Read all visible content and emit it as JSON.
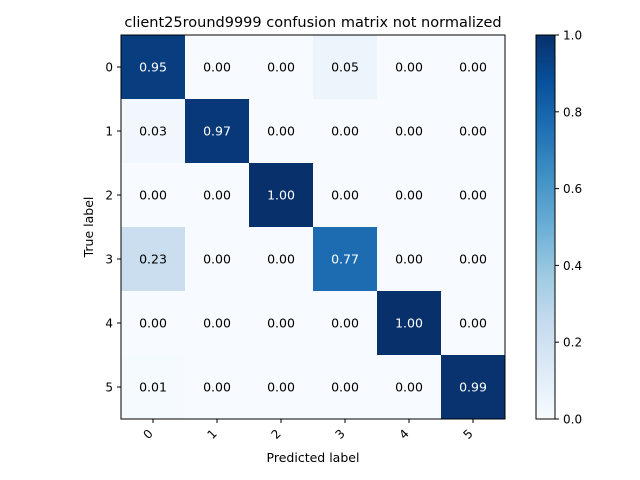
{
  "chart_data": {
    "type": "heatmap",
    "title": "client25round9999 confusion matrix not normalized",
    "xlabel": "Predicted label",
    "ylabel": "True label",
    "x_categories": [
      "0",
      "1",
      "2",
      "3",
      "4",
      "5"
    ],
    "y_categories": [
      "0",
      "1",
      "2",
      "3",
      "4",
      "5"
    ],
    "values": [
      [
        0.95,
        0.0,
        0.0,
        0.05,
        0.0,
        0.0
      ],
      [
        0.03,
        0.97,
        0.0,
        0.0,
        0.0,
        0.0
      ],
      [
        0.0,
        0.0,
        1.0,
        0.0,
        0.0,
        0.0
      ],
      [
        0.23,
        0.0,
        0.0,
        0.77,
        0.0,
        0.0
      ],
      [
        0.0,
        0.0,
        0.0,
        0.0,
        1.0,
        0.0
      ],
      [
        0.01,
        0.0,
        0.0,
        0.0,
        0.0,
        0.99
      ]
    ],
    "colormap": "Blues",
    "colorbar": {
      "range": [
        0.0,
        1.0
      ],
      "ticks": [
        "0.0",
        "0.2",
        "0.4",
        "0.6",
        "0.8",
        "1.0"
      ]
    },
    "x_tick_rotation": "45 degrees",
    "text_color_light": "#ffffff",
    "text_color_dark": "#000000"
  }
}
